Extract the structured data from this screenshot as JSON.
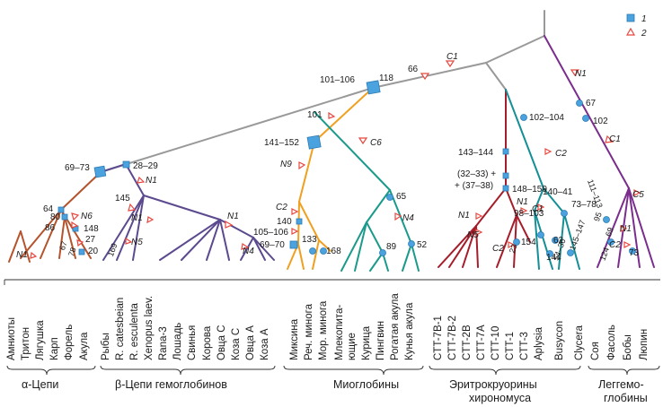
{
  "legend": {
    "items": [
      {
        "key": "1",
        "marker": "square",
        "color": "#4aa3df"
      },
      {
        "key": "2",
        "marker": "triangle",
        "color": "#e8473f"
      }
    ]
  },
  "colors": {
    "root": "#999999",
    "alpha": "#b5532c",
    "beta": "#5c4a8f",
    "agnatha": "#f0a020",
    "myoglobin": "#1a9a8a",
    "chironomus": "#a51d2a",
    "invert": "#138f95",
    "plant": "#7a2d8c",
    "square": "#4aa3df",
    "triangle": "#e8473f"
  },
  "nodes": {
    "n118": "118",
    "n66": "66",
    "nC1_top": "C1",
    "nN1_plant": "N1",
    "n67": "67",
    "n102_plant": "102",
    "nC1_plant": "C1",
    "n101_106": "101–106",
    "n101": "101",
    "nC6": "C6",
    "n141_152": "141–152",
    "nN9": "N9",
    "n69_73": "69–73",
    "n28_29": "28–29",
    "nN1_beta": "N1",
    "n145": "145",
    "nN1_beta2": "N1",
    "nN5_beta": "N5",
    "nN1_beta3": "N1",
    "nN4_beta": "N4",
    "n169": "169",
    "n64": "64",
    "n80": "80",
    "n86": "86",
    "nN6": "N6",
    "n148": "148",
    "n27": "27",
    "n20": "20",
    "n67b": "67",
    "n78": "78",
    "nN1_alpha": "N1",
    "nC2_ag": "C2",
    "n140": "140",
    "n105_106": "105–106",
    "n69_70": "69–70",
    "n133": "133",
    "n168": "168",
    "n65": "65",
    "nN4_myo": "N4",
    "n89": "89",
    "n52": "52",
    "n143_144": "143–144",
    "n32_33": "(32–33) +",
    "n37_38": "+ (37–38)",
    "nN1_ch": "N1",
    "nN5_ch": "N5",
    "nC2_ch": "C2",
    "n23": "23",
    "n154": "154",
    "n148_150": "148–150",
    "nN1_ch2": "N1",
    "n98_103": "98–103",
    "n102_104": "102–104",
    "nC2_inv": "C2",
    "nC1_inv": "C1",
    "n140_41": "140–41",
    "n62": "62",
    "n73_78": "73–78",
    "n145_147": "145–147",
    "n54_36": "54–36",
    "n144": "144",
    "n111_113": "111–113",
    "nC5": "C5",
    "n95": "95",
    "n69": "69",
    "nN1_pl2": "N1",
    "nC2_pl": "C2",
    "n124": "124",
    "n73": "73"
  },
  "leaves": [
    "Амниоты",
    "Тритон",
    "Лягушка",
    "Карп",
    "Форель",
    "Акула",
    "Рыбы",
    "R. catesbeian",
    "R. esculenta",
    "Xenopus laev.",
    "Rana-3",
    "Лошадь",
    "Свинья",
    "Корова",
    "Овца С",
    "Коза С",
    "Овца А",
    "Коза А",
    "Миксина",
    "Реч. минога",
    "Мор. минога",
    "Млекопита-",
    "ющие",
    "Курица",
    "Пингвин",
    "Рогатая акула",
    "Кунья акула",
    "CTT-7B-1",
    "CTT-7B-2",
    "CTT-2B",
    "CTT-7A",
    "CTT-10",
    "CTT-1",
    "CTT-3",
    "Aplysia",
    "Busycon",
    "Clycera",
    "Соя",
    "Фасоль",
    "Бобы",
    "Люпин"
  ],
  "groups": [
    "α-Цепи",
    "β-Цепи гемоглобинов",
    "Миоглобины",
    "Эритрокруорины",
    "хирономуса",
    "Леггемо-",
    "глобины"
  ]
}
